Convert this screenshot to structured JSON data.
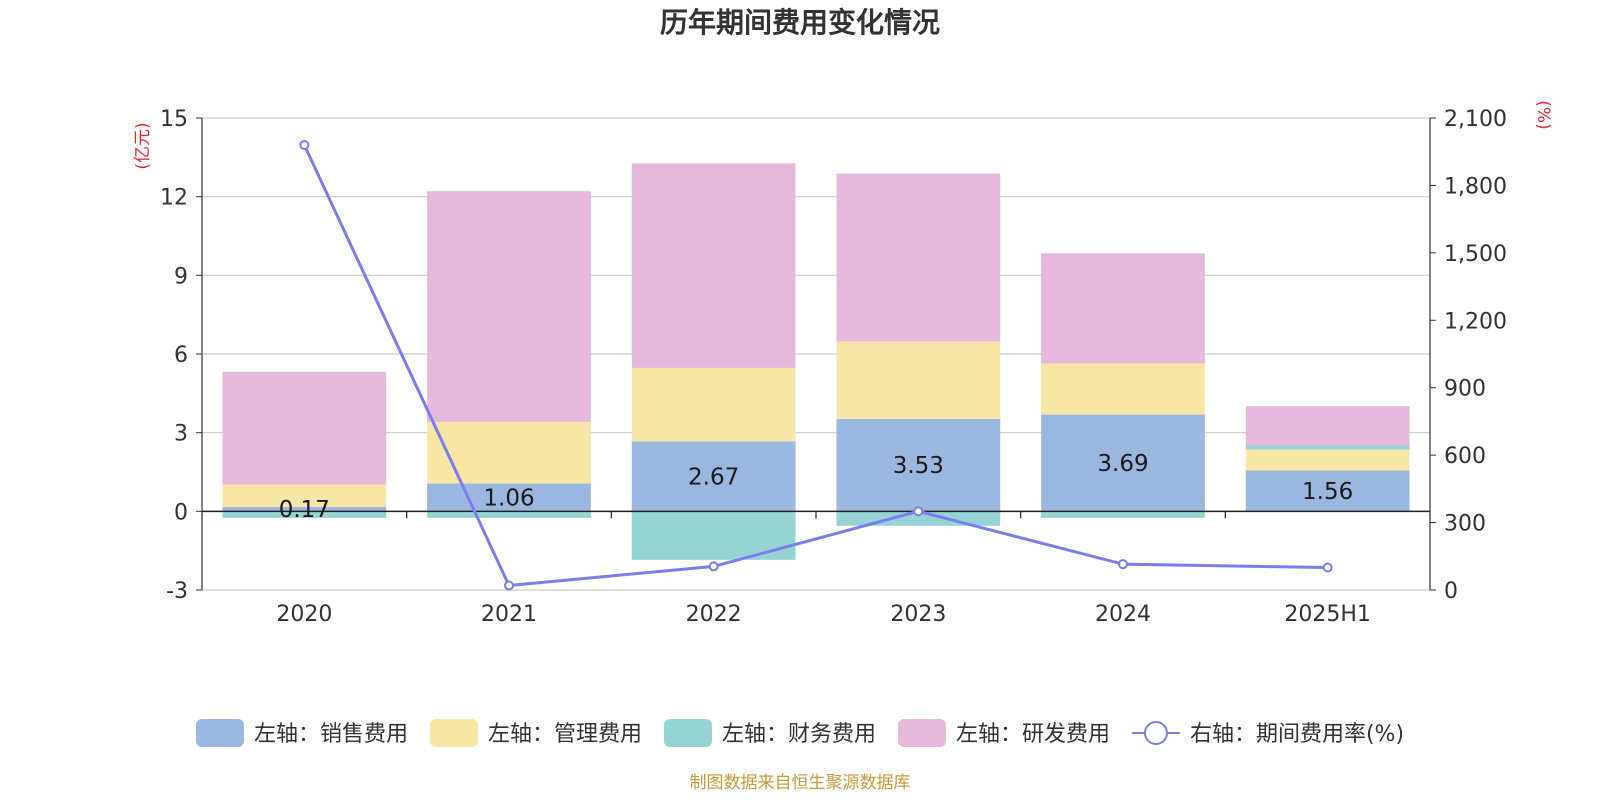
{
  "chart_data": {
    "type": "bar",
    "title": "历年期间费用变化情况",
    "categories": [
      "2020",
      "2021",
      "2022",
      "2023",
      "2024",
      "2025H1"
    ],
    "left_axis": {
      "unit": "(亿元)",
      "ylim": [
        -3,
        15
      ],
      "ticks": [
        "-3",
        "0",
        "3",
        "6",
        "9",
        "12",
        "15"
      ]
    },
    "right_axis": {
      "unit": "(%)",
      "ylim": [
        0,
        2100
      ],
      "ticks": [
        "0",
        "300",
        "600",
        "900",
        "1,200",
        "1,500",
        "1,800",
        "2,100"
      ]
    },
    "series": [
      {
        "name": "左轴：销售费用",
        "axis": "left",
        "stack": true,
        "color": "#9bb7e0",
        "values": [
          0.17,
          1.06,
          2.67,
          3.53,
          3.69,
          1.56
        ],
        "labels": [
          "0.17",
          "1.06",
          "2.67",
          "3.53",
          "3.69",
          "1.56"
        ]
      },
      {
        "name": "左轴：管理费用",
        "axis": "left",
        "stack": true,
        "color": "#f7e6a6",
        "values": [
          0.85,
          2.35,
          2.8,
          2.95,
          1.95,
          0.8
        ]
      },
      {
        "name": "左轴：财务费用",
        "axis": "left",
        "stack": true,
        "color": "#96d4d4",
        "values": [
          -0.25,
          -0.25,
          -1.85,
          -0.55,
          -0.25,
          0.15
        ]
      },
      {
        "name": "左轴：研发费用",
        "axis": "left",
        "stack": true,
        "color": "#e6b8da",
        "values": [
          4.3,
          8.8,
          7.8,
          6.4,
          4.2,
          1.5
        ]
      },
      {
        "name": "右轴：期间费用率(%)",
        "axis": "right",
        "type": "line",
        "color": "#7b7ef0",
        "values": [
          1980,
          20,
          105,
          350,
          115,
          100
        ]
      }
    ],
    "grid": true,
    "legend_position": "bottom"
  },
  "footer": {
    "source": "制图数据来自恒生聚源数据库"
  }
}
